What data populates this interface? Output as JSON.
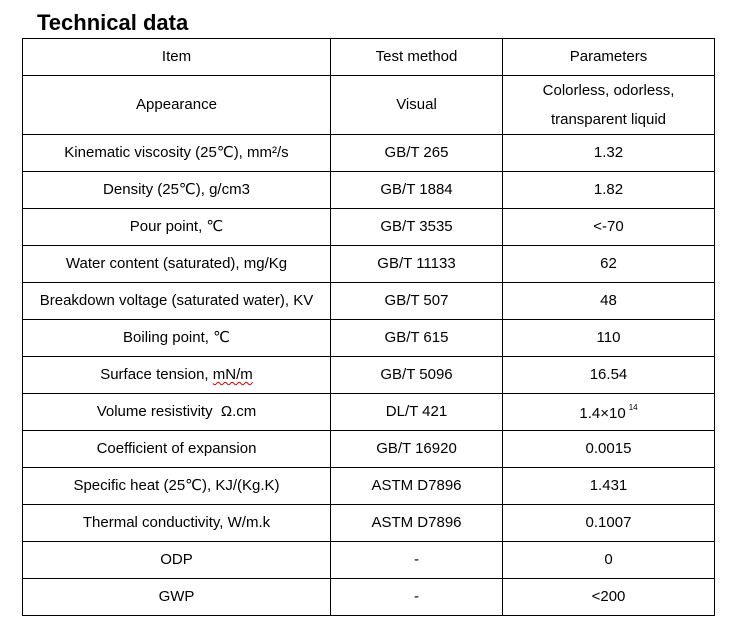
{
  "title": "Technical data",
  "table": {
    "headers": {
      "item": "Item",
      "method": "Test method",
      "parameters": "Parameters"
    },
    "rows": [
      {
        "item": "Appearance",
        "method": "Visual",
        "value_line1": "Colorless, odorless,",
        "value_line2": "transparent liquid"
      },
      {
        "item": "Kinematic viscosity (25℃), mm²/s",
        "method": "GB/T 265",
        "value": "1.32"
      },
      {
        "item": "Density (25℃), g/cm3",
        "method": "GB/T 1884",
        "value": "1.82"
      },
      {
        "item": "Pour point,  ℃",
        "method": "GB/T 3535",
        "value": "<-70"
      },
      {
        "item": "Water content (saturated), mg/Kg",
        "method": "GB/T 11133",
        "value": "62"
      },
      {
        "item": "Breakdown voltage (saturated water), KV",
        "method": "GB/T 507",
        "value": "48"
      },
      {
        "item": "Boiling point,   ℃",
        "method": "GB/T 615",
        "value": "110"
      },
      {
        "item_prefix": "Surface tension, ",
        "item_unit": "mN/m",
        "method": "GB/T 5096",
        "value": "16.54"
      },
      {
        "item": "Volume resistivity  Ω.cm",
        "method": "DL/T 421",
        "value_base": "1.4×10",
        "value_exp": "14"
      },
      {
        "item": "Coefficient of expansion",
        "method": "GB/T 16920",
        "value": "0.0015"
      },
      {
        "item": "Specific heat (25℃), KJ/(Kg.K)",
        "method": "ASTM D7896",
        "value": "1.431"
      },
      {
        "item": "Thermal conductivity, W/m.k",
        "method": "ASTM D7896",
        "value": "0.1007"
      },
      {
        "item": "ODP",
        "method": "-",
        "value": "0"
      },
      {
        "item": "GWP",
        "method": "-",
        "value": "<200"
      }
    ]
  }
}
